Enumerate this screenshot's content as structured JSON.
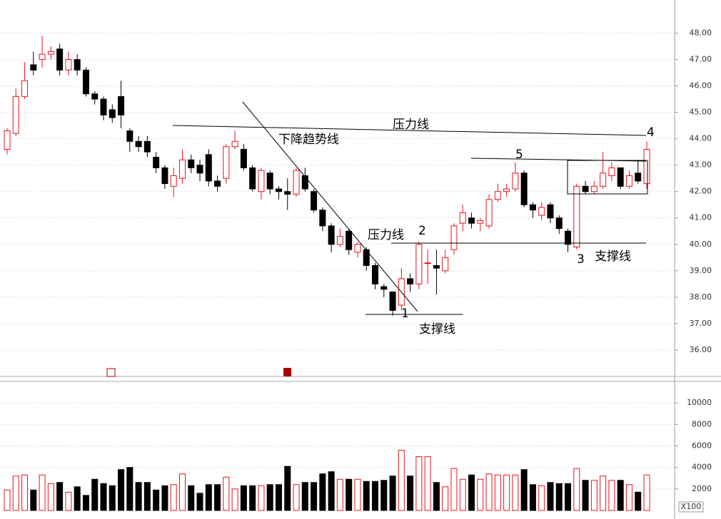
{
  "chart_data": [
    {
      "type": "candlestick",
      "ylim": [
        35,
        49.2
      ],
      "yticks": [
        {
          "value": 36,
          "label": "36.00"
        },
        {
          "value": 37,
          "label": "37.00"
        },
        {
          "value": 38,
          "label": "38.00"
        },
        {
          "value": 39,
          "label": "39.00"
        },
        {
          "value": 40,
          "label": "40.00"
        },
        {
          "value": 41,
          "label": "41.00"
        },
        {
          "value": 42,
          "label": "42.00"
        },
        {
          "value": 43,
          "label": "43.00"
        },
        {
          "value": 44,
          "label": "44.00"
        },
        {
          "value": 45,
          "label": "45.00"
        },
        {
          "value": 46,
          "label": "46.00"
        },
        {
          "value": 47,
          "label": "47.00"
        },
        {
          "value": 48,
          "label": "48.00"
        }
      ],
      "grid": true,
      "up_color": "#e8141c",
      "down_color": "#000000",
      "open": [
        43.6,
        44.2,
        45.6,
        46.8,
        47.0,
        47.2,
        47.4,
        46.6,
        47.0,
        46.6,
        45.7,
        45.5,
        45.1,
        45.6,
        44.3,
        43.9,
        43.9,
        43.3,
        42.9,
        42.2,
        42.5,
        43.2,
        43.0,
        43.4,
        42.4,
        42.5,
        43.7,
        43.6,
        42.9,
        42.0,
        42.7,
        42.1,
        42.0,
        41.9,
        42.6,
        42.0,
        41.3,
        40.7,
        40.0,
        40.5,
        39.7,
        39.8,
        39.2,
        38.4,
        38.2,
        37.7,
        38.7,
        38.5,
        39.3,
        39.2,
        39.0,
        39.8,
        40.8,
        41.0,
        40.8,
        40.7,
        41.7,
        42.0,
        42.1,
        42.7,
        41.5,
        41.1,
        41.5,
        41.0,
        40.5,
        39.9,
        42.2,
        42.0,
        42.2,
        42.6,
        42.9,
        42.2,
        42.7,
        42.3
      ],
      "high": [
        44.4,
        45.9,
        46.9,
        47.3,
        47.9,
        47.5,
        47.6,
        47.3,
        47.2,
        46.7,
        45.8,
        45.6,
        45.3,
        46.2,
        44.4,
        44.1,
        44.1,
        43.5,
        43.0,
        42.9,
        43.6,
        43.4,
        43.2,
        43.6,
        42.6,
        43.8,
        44.3,
        43.8,
        43.0,
        42.9,
        42.8,
        42.2,
        42.5,
        42.9,
        42.9,
        42.1,
        41.4,
        40.8,
        40.6,
        40.6,
        40.1,
        39.9,
        39.3,
        38.5,
        38.2,
        39.1,
        38.9,
        40.1,
        39.8,
        39.8,
        39.8,
        40.8,
        41.5,
        41.2,
        41.0,
        41.9,
        42.3,
        42.3,
        43.1,
        42.8,
        41.6,
        41.6,
        41.6,
        41.1,
        40.6,
        42.3,
        42.4,
        42.4,
        43.5,
        43.1,
        42.9,
        42.8,
        43.2,
        43.9
      ],
      "low": [
        43.4,
        44.1,
        45.5,
        46.4,
        46.7,
        47.0,
        46.4,
        46.4,
        46.4,
        45.6,
        45.3,
        44.7,
        44.6,
        44.4,
        43.5,
        43.5,
        43.3,
        42.7,
        42.1,
        41.8,
        42.3,
        42.7,
        42.4,
        42.2,
        42.0,
        42.3,
        43.6,
        42.8,
        42.0,
        41.7,
        41.9,
        41.7,
        41.3,
        41.8,
        42.0,
        41.2,
        40.5,
        39.7,
        39.9,
        39.6,
        39.5,
        39.0,
        38.3,
        38.0,
        37.3,
        37.5,
        38.2,
        38.3,
        38.5,
        38.1,
        38.9,
        39.6,
        40.5,
        40.6,
        40.5,
        40.6,
        41.6,
        41.8,
        42.0,
        41.4,
        41.0,
        40.9,
        40.8,
        40.4,
        39.7,
        39.8,
        41.9,
        41.9,
        42.1,
        42.4,
        42.1,
        42.1,
        42.3,
        42.1
      ],
      "close": [
        44.3,
        45.6,
        46.2,
        46.6,
        47.2,
        47.3,
        46.6,
        47.0,
        46.6,
        45.7,
        45.5,
        44.9,
        44.8,
        44.9,
        43.9,
        43.7,
        43.5,
        42.9,
        42.3,
        42.6,
        43.2,
        42.9,
        42.7,
        42.4,
        42.2,
        43.7,
        43.9,
        42.9,
        42.1,
        42.8,
        42.1,
        42.0,
        41.9,
        42.8,
        42.1,
        41.3,
        40.7,
        40.0,
        40.3,
        39.8,
        40.0,
        39.2,
        38.5,
        38.3,
        37.5,
        38.7,
        38.5,
        40.0,
        39.3,
        39.1,
        39.5,
        40.7,
        41.2,
        40.8,
        40.9,
        41.7,
        42.0,
        42.1,
        42.7,
        41.5,
        41.3,
        41.4,
        41.0,
        40.6,
        40.0,
        42.2,
        42.0,
        42.2,
        42.7,
        42.9,
        42.2,
        42.6,
        42.4,
        43.6
      ],
      "annotations": [
        "下降趋势线",
        "压力线",
        "压力线",
        "支撑线",
        "支撑线",
        "1",
        "2",
        "3",
        "4",
        "5"
      ]
    },
    {
      "type": "bar",
      "ylim": [
        0,
        12000
      ],
      "yticks": [
        2000,
        4000,
        6000,
        8000,
        10000
      ],
      "unit_label": "X100",
      "values": [
        1900,
        3200,
        3300,
        1900,
        3300,
        2500,
        2600,
        1700,
        2200,
        1400,
        2900,
        2500,
        2300,
        3800,
        4000,
        2600,
        2600,
        1900,
        2300,
        2400,
        3400,
        2300,
        1600,
        2400,
        2400,
        3100,
        2000,
        2300,
        2300,
        2300,
        2400,
        2400,
        4100,
        2400,
        2600,
        2600,
        3400,
        3600,
        2900,
        2900,
        2900,
        2700,
        2700,
        2800,
        3200,
        5600,
        3200,
        5000,
        5000,
        2600,
        2200,
        3900,
        2900,
        3300,
        2900,
        3400,
        3300,
        3300,
        3300,
        3800,
        2400,
        2300,
        2600,
        2500,
        2500,
        3900,
        2800,
        2800,
        3200,
        2800,
        2800,
        2400,
        1700,
        3300
      ]
    }
  ]
}
